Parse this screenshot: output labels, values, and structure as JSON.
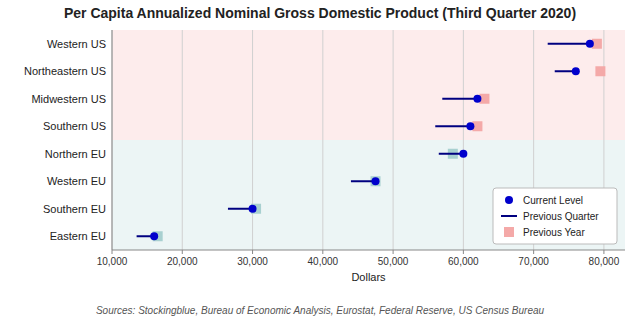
{
  "chart_data": {
    "type": "dot",
    "title": "Per Capita Annualized Nominal Gross Domestic Product (Third Quarter 2020)",
    "xlabel": "Dollars",
    "source": "Sources: Stockingblue, Bureau of Economic Analysis, Eurostat, Federal Reserve, US Census Bureau",
    "orientation": "horizontal",
    "categories": [
      "Western US",
      "Northeastern US",
      "Midwestern US",
      "Southern US",
      "Northern EU",
      "Western EU",
      "Southern EU",
      "Eastern EU"
    ],
    "series": [
      {
        "name": "Current Level",
        "type": "dot",
        "marker": "circle",
        "color": "#0000cc",
        "values": [
          78000,
          76000,
          62000,
          61000,
          60000,
          47500,
          30000,
          16000
        ]
      },
      {
        "name": "Previous Quarter",
        "type": "range",
        "color": "#000080",
        "values": [
          72000,
          73000,
          57000,
          56000,
          56500,
          44000,
          26500,
          13500
        ]
      },
      {
        "name": "Previous Year",
        "type": "dot",
        "marker": "square",
        "colors": [
          "#f4a9a8",
          "#f4a9a8",
          "#f4a9a8",
          "#f4a9a8",
          "#a8d0d0",
          "#a8d0d0",
          "#a8d0d0",
          "#a8d0d0"
        ],
        "values": [
          79000,
          79500,
          63000,
          62000,
          58500,
          47500,
          30500,
          16500
        ]
      }
    ],
    "xlim": [
      10000,
      83000
    ],
    "xticks": [
      {
        "value": 10000,
        "label": "10,000"
      },
      {
        "value": 20000,
        "label": "20,000"
      },
      {
        "value": 30000,
        "label": "30,000"
      },
      {
        "value": 40000,
        "label": "40,000"
      },
      {
        "value": 50000,
        "label": "50,000"
      },
      {
        "value": 60000,
        "label": "60,000"
      },
      {
        "value": 70000,
        "label": "70,000"
      },
      {
        "value": 80000,
        "label": "80,000"
      }
    ],
    "grid": true,
    "legend": "lower right"
  }
}
